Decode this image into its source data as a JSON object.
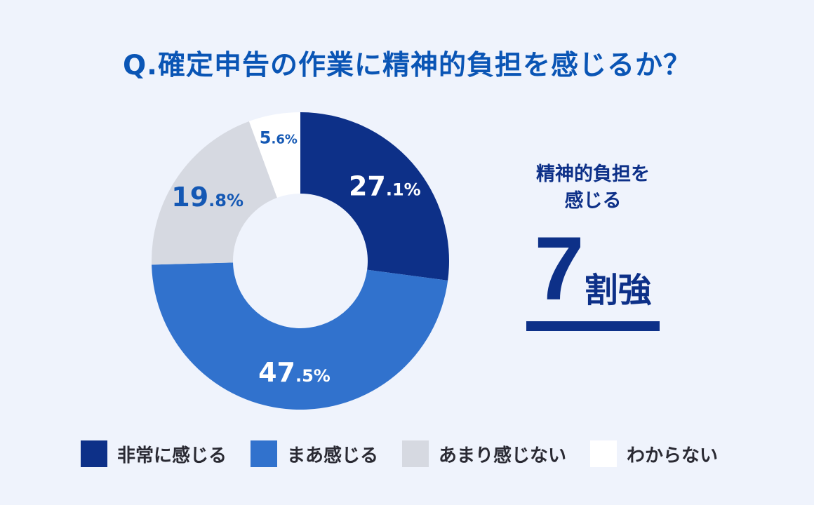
{
  "chart_data": {
    "type": "pie",
    "title": "Q.確定申告の作業に精神的負担を感じるか？",
    "categories": [
      "非常に感じる",
      "まあ感じる",
      "あまり感じない",
      "わからない"
    ],
    "values": [
      27.1,
      47.5,
      19.8,
      5.6
    ],
    "value_labels": [
      "27.1%",
      "47.5%",
      "19.8%",
      "5.6%"
    ],
    "colors": [
      "#0d3088",
      "#3172cd",
      "#d6d9e1",
      "#ffffff"
    ],
    "label_colors": [
      "#ffffff",
      "#ffffff",
      "#1458b4",
      "#1458b4"
    ],
    "legend_position": "bottom"
  },
  "callout": {
    "heading_line1": "精神的負担を",
    "heading_line2": "感じる",
    "number": "7",
    "unit": "割強"
  }
}
